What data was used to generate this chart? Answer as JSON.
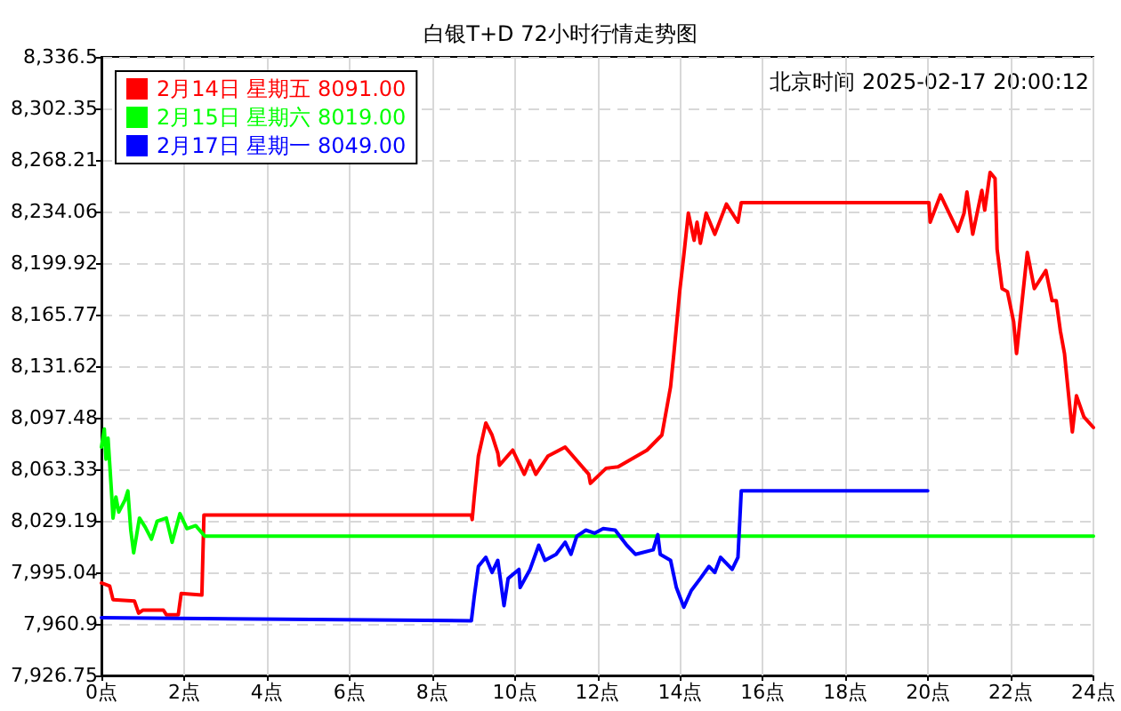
{
  "chart_data": {
    "type": "line",
    "title": "白银T+D 72小时行情走势图",
    "annotations": [
      "北京时间 2025-02-17 20:00:12"
    ],
    "xlim": [
      0,
      24
    ],
    "xticks": [
      {
        "value": 0,
        "label": "0点"
      },
      {
        "value": 2,
        "label": "2点"
      },
      {
        "value": 4,
        "label": "4点"
      },
      {
        "value": 6,
        "label": "6点"
      },
      {
        "value": 8,
        "label": "8点"
      },
      {
        "value": 10,
        "label": "10点"
      },
      {
        "value": 12,
        "label": "12点"
      },
      {
        "value": 14,
        "label": "14点"
      },
      {
        "value": 16,
        "label": "16点"
      },
      {
        "value": 18,
        "label": "18点"
      },
      {
        "value": 20,
        "label": "20点"
      },
      {
        "value": 22,
        "label": "22点"
      },
      {
        "value": 24,
        "label": "24点"
      }
    ],
    "ylim": [
      7926.75,
      8336.5
    ],
    "yticks": [
      {
        "value": 7926.75,
        "label": "7,926.75"
      },
      {
        "value": 7960.9,
        "label": "7,960.9"
      },
      {
        "value": 7995.04,
        "label": "7,995.04"
      },
      {
        "value": 8029.19,
        "label": "8,029.19"
      },
      {
        "value": 8063.33,
        "label": "8,063.33"
      },
      {
        "value": 8097.48,
        "label": "8,097.48"
      },
      {
        "value": 8131.62,
        "label": "8,131.62"
      },
      {
        "value": 8165.77,
        "label": "8,165.77"
      },
      {
        "value": 8199.92,
        "label": "8,199.92"
      },
      {
        "value": 8234.06,
        "label": "8,234.06"
      },
      {
        "value": 8268.21,
        "label": "8,268.21"
      },
      {
        "value": 8302.35,
        "label": "8,302.35"
      },
      {
        "value": 8336.5,
        "label": "8,336.5"
      }
    ],
    "grid": true,
    "legend": "top left",
    "marker": "none",
    "line_style": "solid",
    "series": [
      {
        "name": "2月14日 星期五 8091.00",
        "color": "#ff0000",
        "x": [
          0,
          0.2,
          0.28,
          0.8,
          0.9,
          1.0,
          1.5,
          1.57,
          1.86,
          1.93,
          2.43,
          2.48,
          8.95,
          8.97,
          9.02,
          9.12,
          9.3,
          9.45,
          9.59,
          9.63,
          9.95,
          10.23,
          10.37,
          10.51,
          10.8,
          11.22,
          11.79,
          11.83,
          12.21,
          12.5,
          13.2,
          13.56,
          13.77,
          13.85,
          13.99,
          14.09,
          14.2,
          14.34,
          14.41,
          14.49,
          14.63,
          14.84,
          15.12,
          15.4,
          15.48,
          20.02,
          20.05,
          20.3,
          20.58,
          20.72,
          20.87,
          20.94,
          21.08,
          21.3,
          21.37,
          21.5,
          21.62,
          21.67,
          21.79,
          21.92,
          22.07,
          22.14,
          22.4,
          22.57,
          22.85,
          23.0,
          23.1,
          23.2,
          23.3,
          23.35,
          23.49,
          23.59,
          23.77,
          24
        ],
        "values": [
          7988,
          7986,
          7977,
          7976,
          7968,
          7970,
          7970,
          7967,
          7967,
          7981,
          7980,
          8033,
          8033,
          8030,
          8045,
          8072,
          8094,
          8086,
          8074,
          8066,
          8076,
          8060,
          8069,
          8060,
          8072,
          8078,
          8060,
          8054,
          8064,
          8065,
          8076,
          8086,
          8118,
          8140,
          8181,
          8205,
          8233,
          8215,
          8227,
          8213,
          8233,
          8219,
          8239,
          8227,
          8240,
          8240,
          8227,
          8245,
          8229,
          8221,
          8233,
          8247,
          8219,
          8248,
          8235,
          8260,
          8256,
          8209,
          8183,
          8181,
          8161,
          8140,
          8207,
          8183,
          8195,
          8175,
          8175,
          8155,
          8140,
          8126,
          8088,
          8112,
          8098,
          8091
        ]
      },
      {
        "name": "2月15日 星期六 8019.00",
        "color": "#00ff00",
        "x": [
          0,
          0.07,
          0.11,
          0.16,
          0.24,
          0.28,
          0.35,
          0.42,
          0.57,
          0.64,
          0.71,
          0.78,
          0.92,
          1.06,
          1.21,
          1.35,
          1.57,
          1.71,
          1.9,
          2.07,
          2.28,
          2.5,
          24
        ],
        "values": [
          8078,
          8090,
          8070,
          8084,
          8050,
          8031,
          8045,
          8035,
          8043,
          8049,
          8023,
          8008,
          8031,
          8025,
          8017,
          8029,
          8031,
          8015,
          8034,
          8024,
          8026,
          8019,
          8019
        ]
      },
      {
        "name": "2月17日 星期一 8049.00",
        "color": "#0000ff",
        "x": [
          0,
          8.95,
          9.02,
          9.12,
          9.3,
          9.45,
          9.59,
          9.74,
          9.84,
          10.1,
          10.13,
          10.37,
          10.58,
          10.73,
          11.0,
          11.22,
          11.36,
          11.5,
          11.72,
          11.93,
          12.14,
          12.43,
          12.71,
          12.92,
          13.35,
          13.46,
          13.52,
          13.77,
          13.91,
          14.09,
          14.27,
          14.49,
          14.7,
          14.84,
          14.98,
          15.26,
          15.4,
          15.48,
          19.99
        ],
        "values": [
          7965,
          7963,
          7979,
          7999,
          8005,
          7995,
          8003,
          7973,
          7991,
          7997,
          7985,
          7997,
          8013,
          8003,
          8007,
          8015,
          8007,
          8019,
          8023,
          8021,
          8024,
          8023,
          8013,
          8007,
          8010,
          8020,
          8007,
          8003,
          7985,
          7972,
          7983,
          7991,
          7999,
          7995,
          8005,
          7997,
          8005,
          8049,
          8049
        ]
      }
    ]
  }
}
